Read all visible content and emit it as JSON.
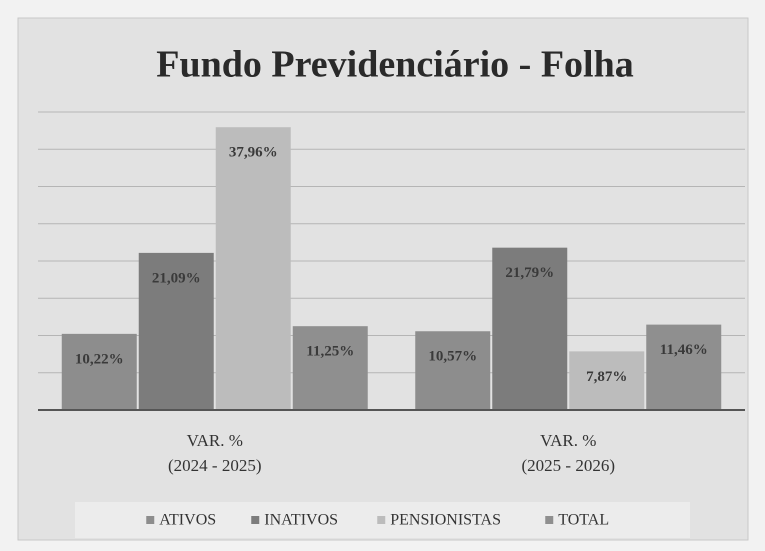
{
  "chart_data": {
    "type": "bar",
    "title": "Fundo Previdenciário - Folha",
    "categories": [
      "VAR. %\n(2024 - 2025)",
      "VAR. %\n(2025 - 2026)"
    ],
    "series": [
      {
        "name": "ATIVOS",
        "color": "#8d8d8d",
        "values": [
          10.22,
          10.57
        ],
        "value_labels": [
          "10,22%",
          "10,57%"
        ]
      },
      {
        "name": "INATIVOS",
        "color": "#7c7c7c",
        "values": [
          21.09,
          21.79
        ],
        "value_labels": [
          "21,09%",
          "21,79%"
        ]
      },
      {
        "name": "PENSIONISTAS",
        "color": "#bcbcbc",
        "values": [
          37.96,
          7.87
        ],
        "value_labels": [
          "37,96%",
          "7,87%"
        ]
      },
      {
        "name": "TOTAL",
        "color": "#8f8f8f",
        "values": [
          11.25,
          11.46
        ],
        "value_labels": [
          "11,25%",
          "11,46%"
        ]
      }
    ],
    "ylim": [
      0,
      40
    ],
    "yticks": [
      0,
      5,
      10,
      15,
      20,
      25,
      30,
      35,
      40
    ],
    "grid": true,
    "legend": "bottom"
  }
}
